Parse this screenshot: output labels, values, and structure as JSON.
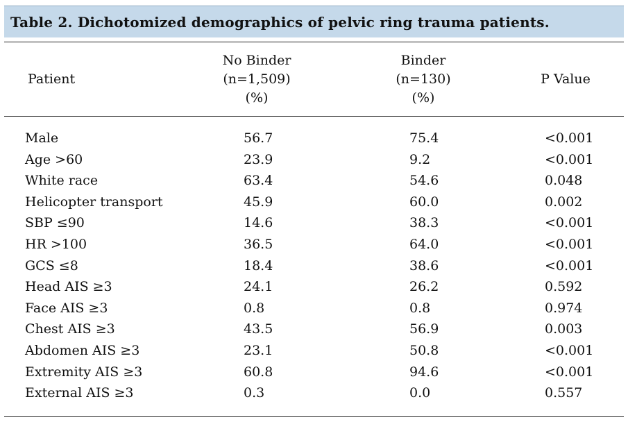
{
  "caption": "Table 2.  Dichotomized demographics of pelvic ring trauma patients.",
  "headers": {
    "patient": "Patient",
    "no_binder": [
      "No Binder",
      "(n=1,509)",
      "(%)"
    ],
    "binder": [
      "Binder",
      "(n=130)",
      "(%)"
    ],
    "p_value": "P Value"
  },
  "rows": [
    {
      "label": "Male",
      "no_binder": "56.7",
      "binder": "75.4",
      "p": "<0.001"
    },
    {
      "label": "Age >60",
      "no_binder": "23.9",
      "binder": "9.2",
      "p": "<0.001"
    },
    {
      "label": "White race",
      "no_binder": "63.4",
      "binder": "54.6",
      "p": "0.048"
    },
    {
      "label": "Helicopter transport",
      "no_binder": "45.9",
      "binder": "60.0",
      "p": "0.002"
    },
    {
      "label": "SBP ≤90",
      "no_binder": "14.6",
      "binder": "38.3",
      "p": "<0.001"
    },
    {
      "label": "HR >100",
      "no_binder": "36.5",
      "binder": "64.0",
      "p": "<0.001"
    },
    {
      "label": "GCS ≤8",
      "no_binder": "18.4",
      "binder": "38.6",
      "p": "<0.001"
    },
    {
      "label": "Head AIS ≥3",
      "no_binder": "24.1",
      "binder": "26.2",
      "p": "0.592"
    },
    {
      "label": "Face AIS ≥3",
      "no_binder": "0.8",
      "binder": "0.8",
      "p": "0.974"
    },
    {
      "label": "Chest AIS ≥3",
      "no_binder": "43.5",
      "binder": "56.9",
      "p": "0.003"
    },
    {
      "label": "Abdomen AIS ≥3",
      "no_binder": "23.1",
      "binder": "50.8",
      "p": "<0.001"
    },
    {
      "label": "Extremity AIS ≥3",
      "no_binder": "60.8",
      "binder": "94.6",
      "p": "<0.001"
    },
    {
      "label": "External AIS ≥3",
      "no_binder": "0.3",
      "binder": "0.0",
      "p": "0.557"
    }
  ]
}
